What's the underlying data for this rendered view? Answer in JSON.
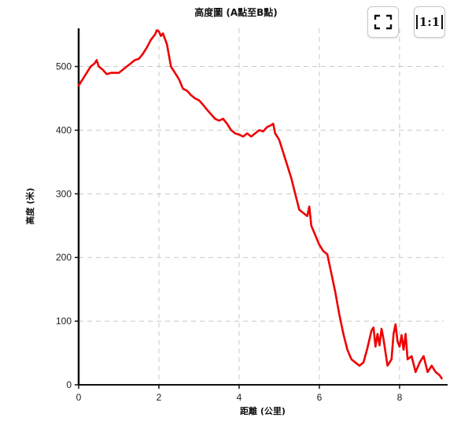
{
  "toolbar": {
    "fullscreen_icon": "fullscreen-icon",
    "reset_zoom_label": "1:1"
  },
  "chart_data": {
    "type": "line",
    "title": "高度圖 (A點至B點)",
    "xlabel": "距離 (公里)",
    "ylabel": "高度 (米)",
    "xlim": [
      0,
      9.1
    ],
    "ylim": [
      0,
      560
    ],
    "xticks": [
      0,
      2,
      4,
      6,
      8
    ],
    "yticks": [
      0,
      100,
      200,
      300,
      400,
      500
    ],
    "grid": true,
    "line_color": "#ee0000",
    "series": [
      {
        "x": [
          0,
          0.1,
          0.2,
          0.3,
          0.4,
          0.45,
          0.5,
          0.6,
          0.7,
          0.8,
          0.9,
          1.0,
          1.1,
          1.2,
          1.3,
          1.4,
          1.5,
          1.6,
          1.7,
          1.8,
          1.9,
          1.95,
          2.0,
          2.05,
          2.1,
          2.2,
          2.3,
          2.4,
          2.5,
          2.6,
          2.7,
          2.8,
          2.9,
          3.0,
          3.1,
          3.2,
          3.3,
          3.4,
          3.5,
          3.6,
          3.7,
          3.8,
          3.9,
          4.0,
          4.1,
          4.2,
          4.3,
          4.4,
          4.5,
          4.6,
          4.7,
          4.8,
          4.85,
          4.9,
          5.0,
          5.1,
          5.2,
          5.3,
          5.4,
          5.5,
          5.6,
          5.7,
          5.75,
          5.8,
          5.9,
          6.0,
          6.1,
          6.2,
          6.3,
          6.4,
          6.5,
          6.6,
          6.7,
          6.8,
          6.9,
          7.0,
          7.1,
          7.2,
          7.3,
          7.35,
          7.4,
          7.45,
          7.5,
          7.55,
          7.6,
          7.7,
          7.8,
          7.85,
          7.9,
          7.95,
          8.0,
          8.05,
          8.1,
          8.15,
          8.2,
          8.3,
          8.4,
          8.5,
          8.6,
          8.7,
          8.8,
          8.9,
          9.0,
          9.05
        ],
        "y": [
          470,
          480,
          490,
          500,
          505,
          510,
          500,
          495,
          488,
          490,
          490,
          490,
          495,
          500,
          505,
          510,
          512,
          520,
          530,
          542,
          550,
          557,
          555,
          548,
          552,
          535,
          500,
          490,
          480,
          465,
          462,
          455,
          450,
          447,
          440,
          432,
          425,
          418,
          415,
          418,
          410,
          400,
          395,
          393,
          390,
          395,
          390,
          395,
          400,
          398,
          405,
          408,
          410,
          395,
          385,
          365,
          345,
          325,
          300,
          275,
          270,
          265,
          280,
          250,
          235,
          220,
          210,
          205,
          175,
          145,
          110,
          80,
          55,
          40,
          35,
          30,
          35,
          58,
          85,
          90,
          60,
          80,
          62,
          88,
          72,
          30,
          40,
          80,
          95,
          68,
          60,
          78,
          55,
          80,
          40,
          45,
          20,
          35,
          45,
          20,
          30,
          20,
          15,
          10
        ]
      }
    ]
  }
}
